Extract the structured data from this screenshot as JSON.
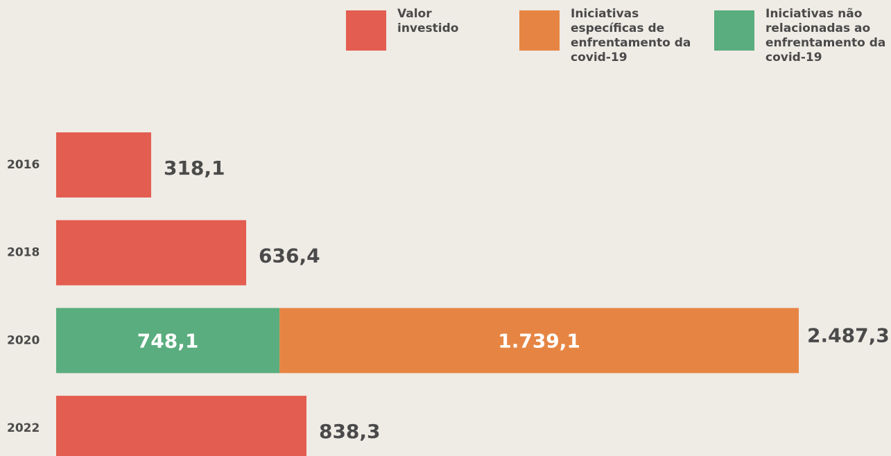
{
  "chart_data": {
    "type": "stacked-horizontal-bar",
    "categories": [
      "2016",
      "2018",
      "2020",
      "2022"
    ],
    "series": [
      {
        "name": "Valor investido",
        "color": "#e35d50",
        "values": [
          318.1,
          636.4,
          null,
          838.3
        ],
        "value_labels": [
          "318,1",
          "636,4",
          null,
          "838,3"
        ]
      },
      {
        "name": "Iniciativas específicas de enfrentamento da covid-19",
        "color": "#e68543",
        "values": [
          null,
          null,
          1739.1,
          null
        ],
        "value_labels": [
          null,
          null,
          "1.739,1",
          null
        ]
      },
      {
        "name": "Iniciativas não relacionadas ao enfrentamento da covid-19",
        "color": "#5aad7e",
        "values": [
          null,
          null,
          748.1,
          null
        ],
        "value_labels": [
          null,
          null,
          "748,1",
          null
        ]
      }
    ],
    "totals": [
      null,
      null,
      2487.3,
      null
    ],
    "total_labels": [
      null,
      null,
      "2.487,3",
      null
    ]
  }
}
